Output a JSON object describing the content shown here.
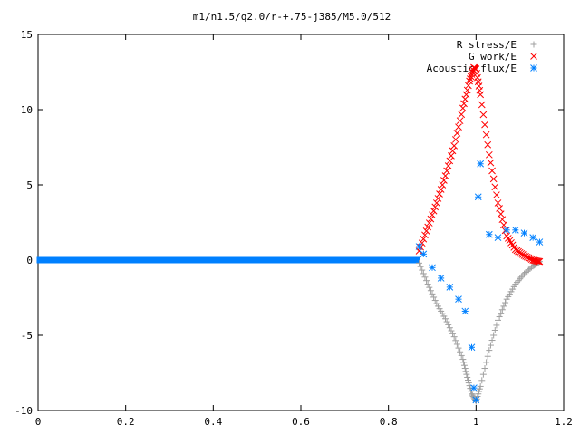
{
  "chart_data": {
    "type": "scatter",
    "title": "m1/n1.5/q2.0/r-+.75-j385/M5.0/512",
    "xlabel": "",
    "ylabel": "",
    "xlim": [
      0,
      1.2
    ],
    "ylim": [
      -10,
      15
    ],
    "x_ticks": [
      0,
      0.2,
      0.4,
      0.6,
      0.8,
      1,
      1.2
    ],
    "x_tick_labels": [
      "0",
      "0.2",
      "0.4",
      "0.6",
      "0.8",
      "1",
      "1.2"
    ],
    "y_ticks": [
      -10,
      -5,
      0,
      5,
      10,
      15
    ],
    "y_tick_labels": [
      "-10",
      "-5",
      "0",
      "5",
      "10",
      "15"
    ],
    "grid": false,
    "legend_position": "top-right",
    "series": [
      {
        "name": "R stress/E",
        "marker": "+",
        "color": "#a0a0a0",
        "x": [
          0.87,
          0.89,
          0.91,
          0.93,
          0.95,
          0.97,
          0.98,
          0.99,
          1.0,
          1.01,
          1.03,
          1.05,
          1.07,
          1.09,
          1.11,
          1.13,
          1.145
        ],
        "y": [
          -0.2,
          -1.6,
          -2.9,
          -3.9,
          -5.1,
          -6.6,
          -7.8,
          -8.9,
          -9.4,
          -8.4,
          -6.0,
          -4.0,
          -2.6,
          -1.6,
          -0.9,
          -0.4,
          -0.1
        ]
      },
      {
        "name": "G work/E",
        "marker": "x",
        "color": "#ff0000",
        "x": [
          0.87,
          0.89,
          0.91,
          0.93,
          0.95,
          0.97,
          0.985,
          0.995,
          1.0,
          1.01,
          1.03,
          1.05,
          1.07,
          1.09,
          1.11,
          1.13,
          1.145
        ],
        "y": [
          0.6,
          2.2,
          3.8,
          5.6,
          7.6,
          10.1,
          11.9,
          12.8,
          12.7,
          11.0,
          7.0,
          3.8,
          1.6,
          0.7,
          0.3,
          0.0,
          -0.1
        ]
      },
      {
        "name": "Acoustic flux/E",
        "marker": "*",
        "color": "#0080ff",
        "x": [
          0.87,
          0.88,
          0.9,
          0.92,
          0.94,
          0.96,
          0.975,
          0.99,
          0.995,
          1.0,
          1.005,
          1.01,
          1.03,
          1.05,
          1.07,
          1.09,
          1.11,
          1.13,
          1.145
        ],
        "y": [
          0.9,
          0.4,
          -0.5,
          -1.2,
          -1.8,
          -2.6,
          -3.4,
          -5.8,
          -8.5,
          -9.3,
          4.2,
          6.4,
          1.7,
          1.5,
          2.0,
          2.0,
          1.8,
          1.5,
          1.2
        ]
      }
    ]
  }
}
